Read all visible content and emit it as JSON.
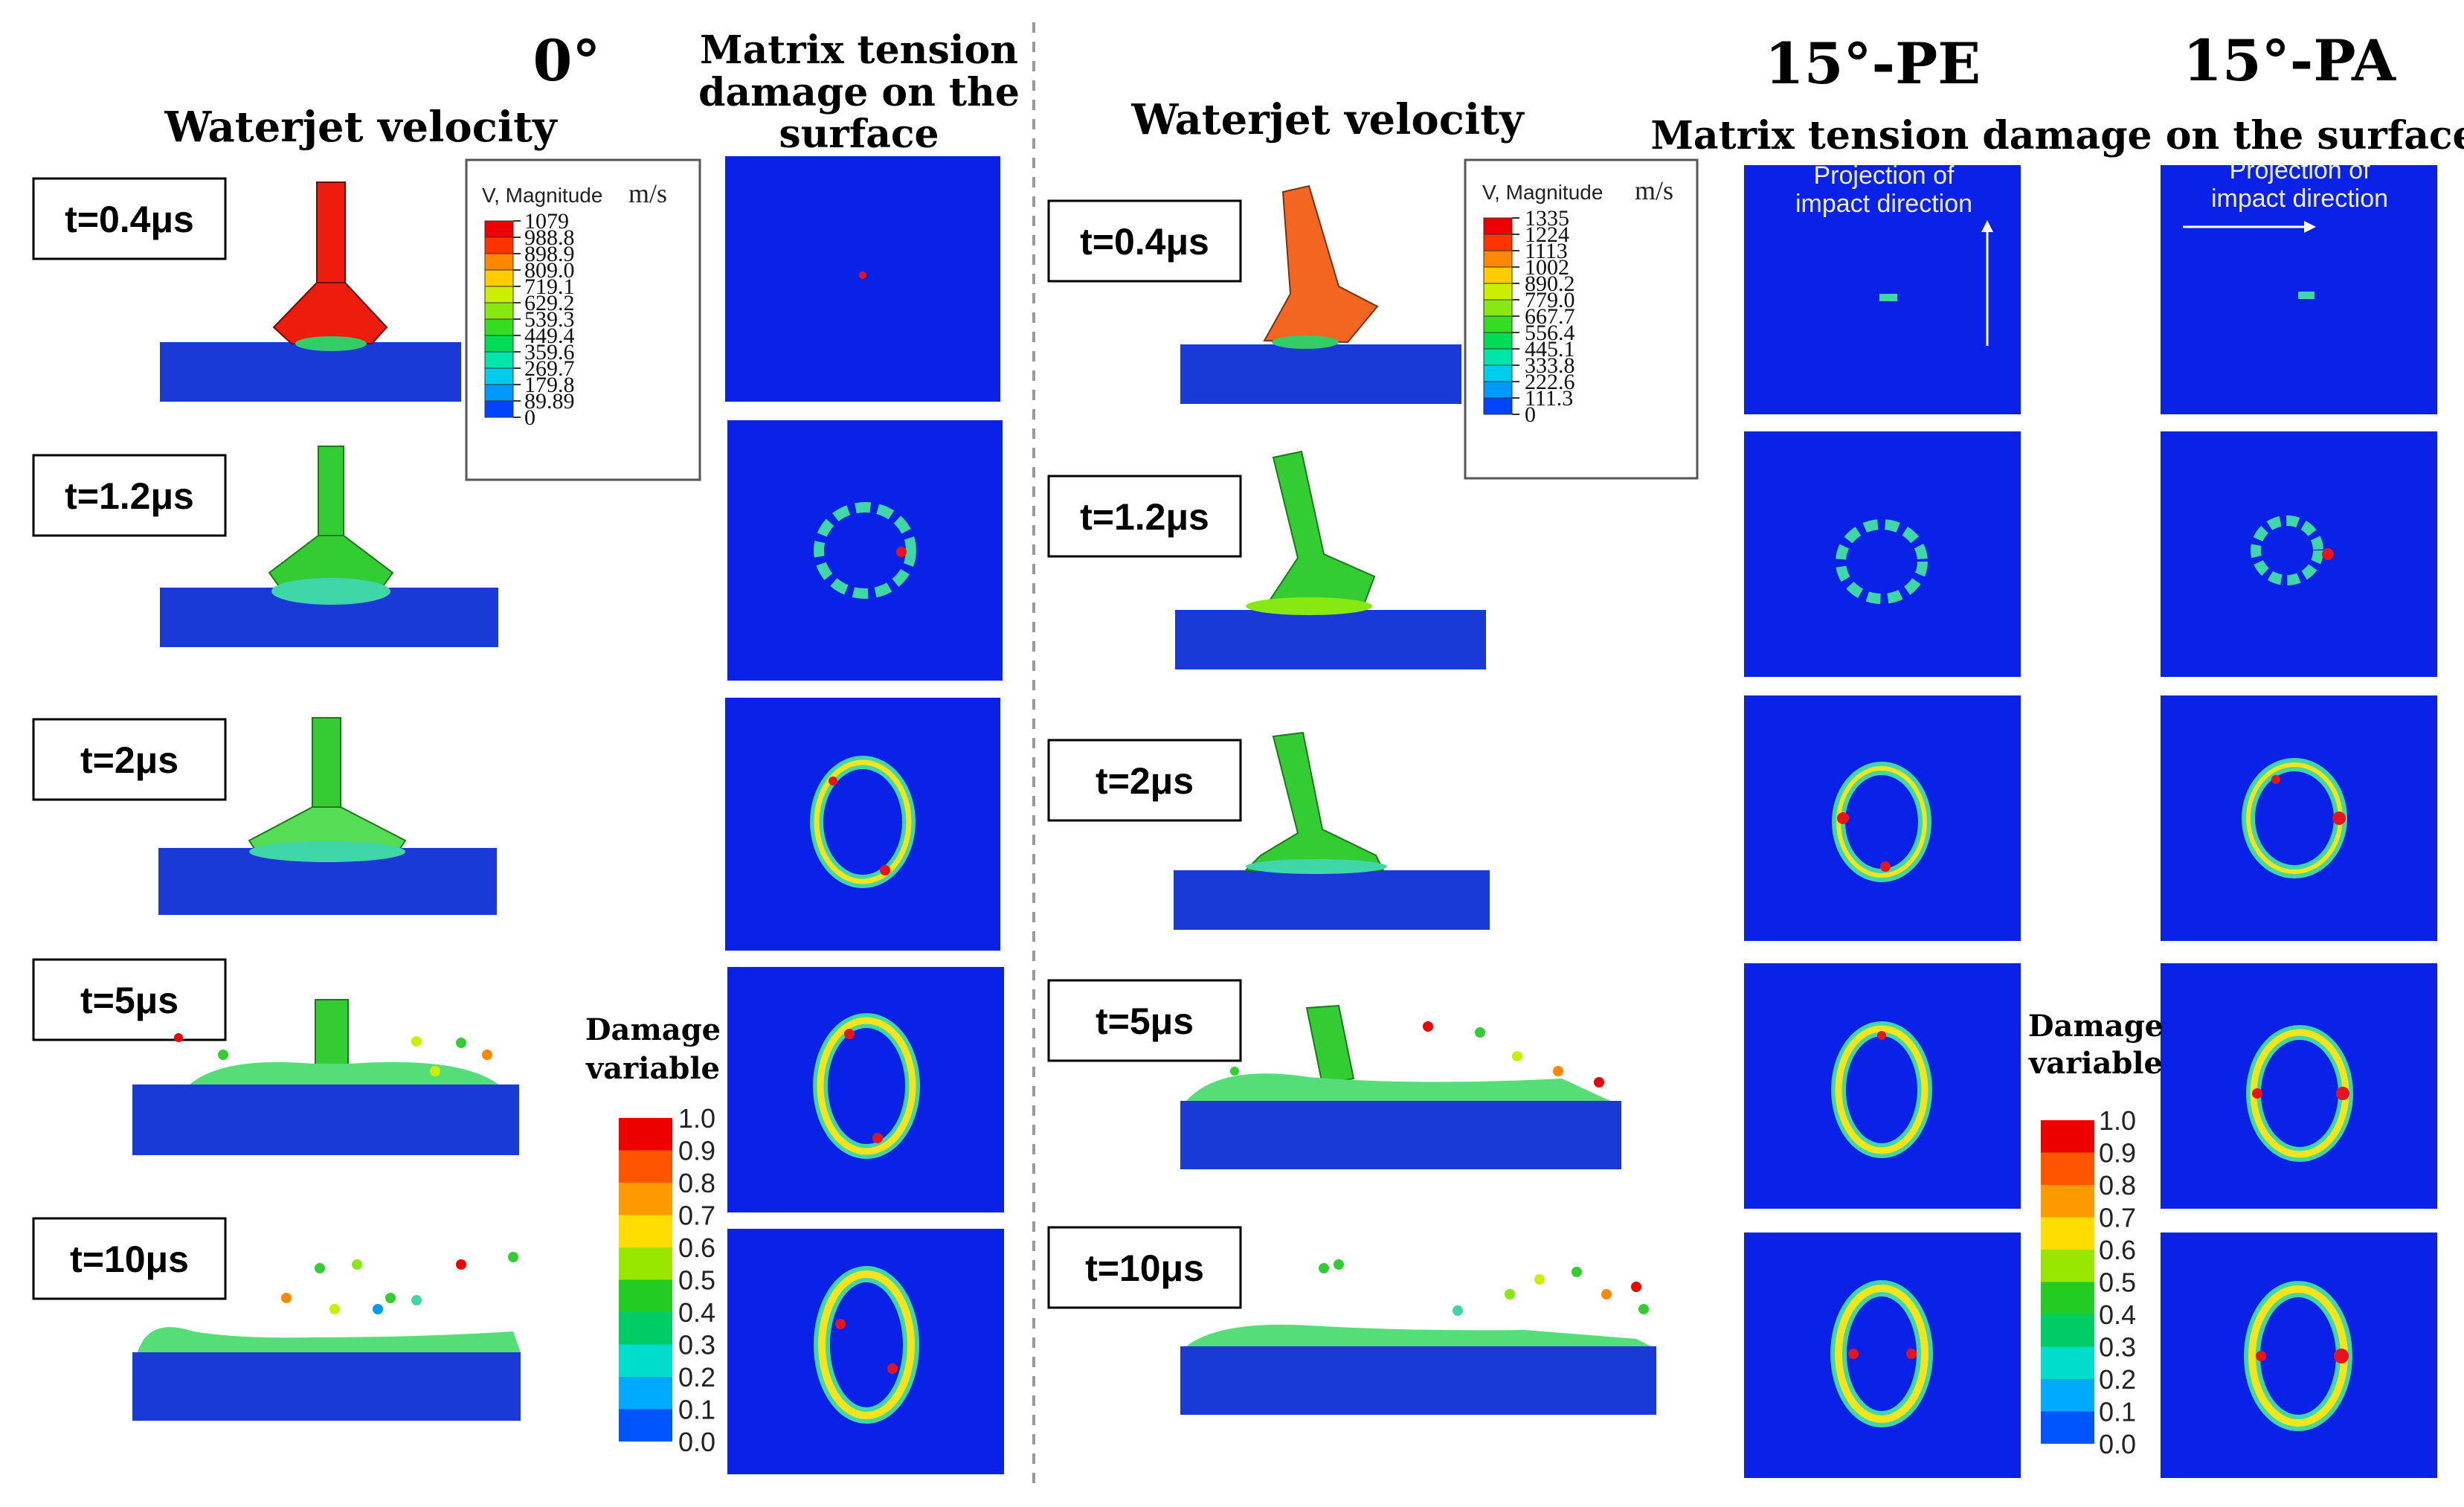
{
  "left": {
    "angle": "0°",
    "velocity_title": "Waterjet velocity",
    "damage_title": [
      "Matrix tension",
      "damage on the",
      "surface"
    ],
    "time_labels": [
      "t=0.4μs",
      "t=1.2μs",
      "t=2μs",
      "t=5μs",
      "t=10μs"
    ],
    "velocity_legend": {
      "title": "V, Magnitude",
      "unit": "m/s",
      "values": [
        "1079",
        "988.8",
        "898.9",
        "809.0",
        "719.1",
        "629.2",
        "539.3",
        "449.4",
        "359.6",
        "269.7",
        "179.8",
        "89.89",
        "0"
      ]
    }
  },
  "right": {
    "angle_pe": "15°-PE",
    "angle_pa": "15°-PA",
    "velocity_title": "Waterjet velocity",
    "damage_title": "Matrix tension damage on the surface",
    "time_labels": [
      "t=0.4μs",
      "t=1.2μs",
      "t=2μs",
      "t=5μs",
      "t=10μs"
    ],
    "projection_label": [
      "Projection of",
      "impact direction"
    ],
    "velocity_legend": {
      "title": "V, Magnitude",
      "unit": "m/s",
      "values": [
        "1335",
        "1224",
        "1113",
        "1002",
        "890.2",
        "779.0",
        "667.7",
        "556.4",
        "445.1",
        "333.8",
        "222.6",
        "111.3",
        "0"
      ]
    }
  },
  "damage_legend": {
    "title": [
      "Damage",
      "variable"
    ],
    "values": [
      "1.0",
      "0.9",
      "0.8",
      "0.7",
      "0.6",
      "0.5",
      "0.4",
      "0.3",
      "0.2",
      "0.1",
      "0.0"
    ]
  },
  "colors": {
    "panel_blue": "#0a22e8",
    "substrate_blue": "#1a3ad8",
    "jet_red": "#ee1c0c",
    "jet_orange": "#f26622",
    "jet_green": "#33cc33",
    "ring_teal": "#3fd6a8",
    "ring_yellow": "#f4e41c",
    "ring_red": "#e8141c",
    "divider": "#9a9a9a",
    "scale": [
      "#0000ff",
      "#0044ff",
      "#0099ff",
      "#00ccee",
      "#00e6aa",
      "#00dd55",
      "#33dd22",
      "#88e811",
      "#ccee00",
      "#ffcc00",
      "#ff8800",
      "#ff3300",
      "#ee0000"
    ]
  }
}
